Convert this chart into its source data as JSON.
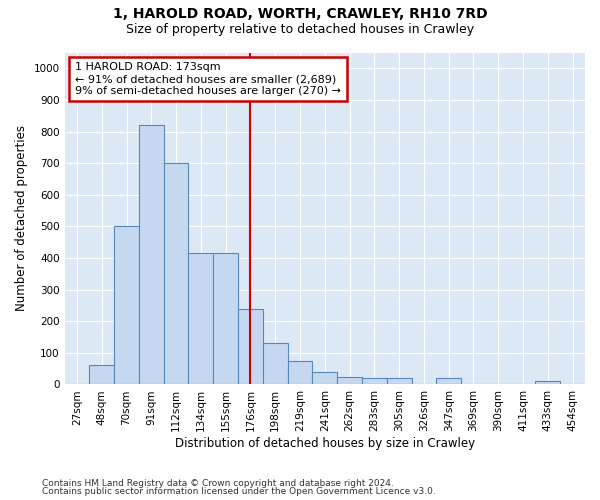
{
  "title1": "1, HAROLD ROAD, WORTH, CRAWLEY, RH10 7RD",
  "title2": "Size of property relative to detached houses in Crawley",
  "xlabel": "Distribution of detached houses by size in Crawley",
  "ylabel": "Number of detached properties",
  "footnote1": "Contains HM Land Registry data © Crown copyright and database right 2024.",
  "footnote2": "Contains public sector information licensed under the Open Government Licence v3.0.",
  "bar_labels": [
    "27sqm",
    "48sqm",
    "70sqm",
    "91sqm",
    "112sqm",
    "134sqm",
    "155sqm",
    "176sqm",
    "198sqm",
    "219sqm",
    "241sqm",
    "262sqm",
    "283sqm",
    "305sqm",
    "326sqm",
    "347sqm",
    "369sqm",
    "390sqm",
    "411sqm",
    "433sqm",
    "454sqm"
  ],
  "bar_values": [
    0,
    60,
    500,
    820,
    700,
    415,
    415,
    240,
    130,
    75,
    40,
    25,
    20,
    20,
    0,
    20,
    0,
    0,
    0,
    10,
    0
  ],
  "bar_color": "#c5d8f0",
  "bar_edge_color": "#5588bb",
  "vline_index": 7,
  "annotation_line1": "1 HAROLD ROAD: 173sqm",
  "annotation_line2": "← 91% of detached houses are smaller (2,689)",
  "annotation_line3": "9% of semi-detached houses are larger (270) →",
  "annotation_box_color": "white",
  "annotation_box_edge_color": "#cc0000",
  "vline_color": "#cc0000",
  "ylim": [
    0,
    1050
  ],
  "yticks": [
    0,
    100,
    200,
    300,
    400,
    500,
    600,
    700,
    800,
    900,
    1000
  ],
  "background_color": "#dde8f5",
  "grid_color": "white",
  "title1_fontsize": 10,
  "title2_fontsize": 9,
  "xlabel_fontsize": 8.5,
  "ylabel_fontsize": 8.5,
  "tick_fontsize": 7.5,
  "annotation_fontsize": 8
}
